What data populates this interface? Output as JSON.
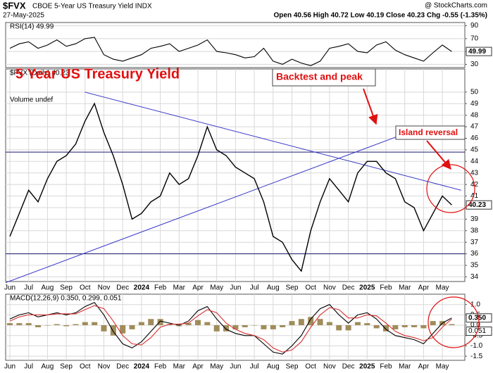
{
  "header": {
    "symbol": "$FVX",
    "name": "CBOE 5-Year US Treasury Yield INDX",
    "source": "@ StockCharts.com",
    "date": "27-May-2025",
    "quote": "Open 40.56  High 40.72  Low 40.19  Close 40.23  Chg -0.55 (-1.35%)"
  },
  "chart_data": [
    {
      "type": "line",
      "label": "RSI(14) 49.99",
      "ylim": [
        25,
        95
      ],
      "yticks": [
        30,
        50,
        70,
        90
      ],
      "grid": true,
      "series": [
        {
          "name": "RSI(14)",
          "color": "#000000",
          "values": [
            55,
            62,
            65,
            55,
            60,
            68,
            58,
            62,
            70,
            72,
            45,
            38,
            35,
            40,
            45,
            55,
            58,
            62,
            50,
            55,
            60,
            68,
            50,
            48,
            45,
            40,
            42,
            55,
            35,
            30,
            38,
            32,
            28,
            35,
            55,
            58,
            62,
            50,
            48,
            60,
            65,
            52,
            45,
            40,
            35,
            48,
            60,
            49.99
          ]
        }
      ]
    },
    {
      "type": "line",
      "title": "5 Year US Treasury Yield",
      "label": "$FVX (Daily) 40.23",
      "sublabel": "Volume undef",
      "annotations": [
        "Backtest and peak",
        "Island reversal"
      ],
      "categories": [
        "Jun",
        null,
        "Jul",
        null,
        "Aug",
        null,
        "Sep",
        null,
        "Oct",
        null,
        "Nov",
        null,
        "Dec",
        null,
        "2024",
        null,
        "Feb",
        null,
        "Mar",
        null,
        "Apr",
        null,
        "May",
        null,
        "Jun",
        null,
        "Jul",
        null,
        "Aug",
        null,
        "Sep",
        null,
        "Oct",
        null,
        "Nov",
        null,
        "Dec",
        null,
        "2025",
        null,
        "Feb",
        null,
        "Mar",
        null,
        "Apr",
        null,
        "May",
        null
      ],
      "ylim": [
        33.6,
        52
      ],
      "yticks": [
        34,
        35,
        36,
        37,
        38,
        39,
        40,
        41,
        42,
        43,
        44,
        45,
        46,
        47,
        48,
        49,
        50
      ],
      "grid": true,
      "hlines": [
        44.8,
        36
      ],
      "hline_color": "#1a1a6e",
      "trendlines": [
        {
          "from": [
            0,
            33.5
          ],
          "to": [
            44,
            47
          ]
        },
        {
          "from": [
            9,
            50
          ],
          "to": [
            48,
            41.5
          ]
        }
      ],
      "trend_color": "#3a3ac8",
      "series": [
        {
          "name": "$FVX",
          "color": "#000000",
          "values": [
            37.5,
            39.5,
            41.5,
            40.5,
            42.5,
            44.0,
            44.5,
            45.5,
            47.5,
            49.0,
            46.5,
            44.5,
            42.0,
            39.0,
            39.5,
            40.5,
            41.0,
            43.0,
            42.0,
            42.5,
            44.5,
            47.0,
            45.0,
            44.5,
            43.5,
            43.0,
            42.5,
            40.5,
            37.5,
            37.0,
            35.5,
            34.5,
            38.0,
            40.5,
            42.5,
            41.5,
            40.5,
            43.0,
            44.0,
            44.0,
            43.0,
            42.5,
            40.5,
            40.0,
            38.0,
            39.5,
            41.0,
            40.23
          ]
        }
      ]
    },
    {
      "type": "line",
      "label": "MACD(12,26,9) 0.350, 0.299, 0.051",
      "categories": [
        "Jun",
        null,
        "Jul",
        null,
        "Aug",
        null,
        "Sep",
        null,
        "Oct",
        null,
        "Nov",
        null,
        "Dec",
        null,
        "2024",
        null,
        "Feb",
        null,
        "Mar",
        null,
        "Apr",
        null,
        "May",
        null,
        "Jun",
        null,
        "Jul",
        null,
        "Aug",
        null,
        "Sep",
        null,
        "Oct",
        null,
        "Nov",
        null,
        "Dec",
        null,
        "2025",
        null,
        "Feb",
        null,
        "Mar",
        null,
        "Apr",
        null,
        "May",
        null
      ],
      "ylim": [
        -1.7,
        1.5
      ],
      "yticks": [
        {
          "value": 1,
          "label": "1.0"
        },
        0.5,
        {
          "value": 0,
          "label": "0.0"
        },
        -0.5,
        {
          "value": -1,
          "label": "-1.0"
        },
        -1.5
      ],
      "grid": true,
      "last_labels": {
        "macd": "0.350",
        "histogram": "0.051"
      },
      "series": [
        {
          "name": "Histogram",
          "type": "bar",
          "color": "#a08c5a",
          "values": [
            0.1,
            0.1,
            0.1,
            -0.1,
            0,
            0.05,
            -0.05,
            0.05,
            0.15,
            0.15,
            -0.3,
            -0.5,
            -0.4,
            -0.2,
            0.15,
            0.3,
            0.3,
            0.05,
            -0.05,
            0.1,
            0.25,
            0.15,
            -0.3,
            -0.3,
            -0.2,
            -0.1,
            0,
            -0.2,
            -0.2,
            -0.1,
            0.2,
            0.3,
            0.4,
            0.3,
            0.15,
            -0.25,
            -0.25,
            0.15,
            0.1,
            -0.15,
            -0.3,
            -0.2,
            -0.1,
            -0.1,
            -0.15,
            0.2,
            0.2,
            0.051
          ]
        },
        {
          "name": "MACD",
          "color": "#000000",
          "values": [
            0.3,
            0.5,
            0.6,
            0.4,
            0.5,
            0.6,
            0.5,
            0.6,
            0.9,
            1.1,
            0.5,
            -0.3,
            -0.9,
            -1.1,
            -0.8,
            -0.3,
            0.2,
            0.1,
            0.0,
            0.2,
            0.7,
            0.9,
            0.3,
            -0.2,
            -0.4,
            -0.5,
            -0.5,
            -0.9,
            -1.3,
            -1.4,
            -1.0,
            -0.5,
            0.3,
            0.8,
            1.0,
            0.5,
            0.1,
            0.5,
            0.6,
            0.3,
            -0.2,
            -0.5,
            -0.6,
            -0.7,
            -0.9,
            -0.4,
            0.1,
            0.35
          ]
        },
        {
          "name": "Signal",
          "color": "#d83030",
          "values": [
            0.2,
            0.4,
            0.5,
            0.5,
            0.5,
            0.55,
            0.55,
            0.55,
            0.75,
            0.95,
            0.8,
            0.2,
            -0.5,
            -0.9,
            -0.95,
            -0.6,
            -0.1,
            0.05,
            0.05,
            0.1,
            0.45,
            0.75,
            0.6,
            0.1,
            -0.2,
            -0.4,
            -0.5,
            -0.7,
            -1.1,
            -1.3,
            -1.2,
            -0.8,
            -0.1,
            0.5,
            0.85,
            0.75,
            0.35,
            0.35,
            0.5,
            0.45,
            0.1,
            -0.3,
            -0.5,
            -0.6,
            -0.75,
            -0.6,
            -0.1,
            0.299
          ]
        }
      ]
    }
  ]
}
